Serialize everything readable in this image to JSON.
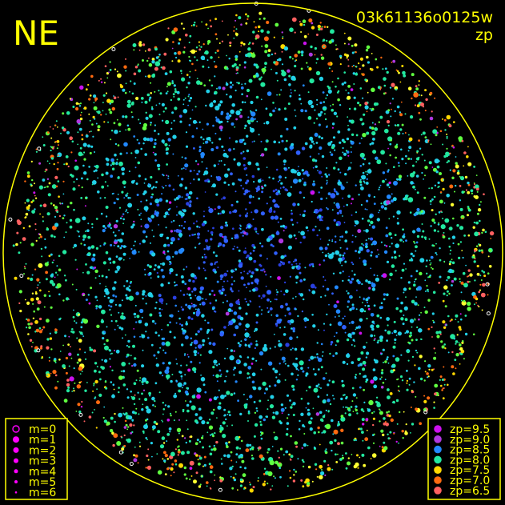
{
  "header": {
    "direction_label": "NE",
    "frame_id": "03k61136o0125w",
    "color_key": "zp"
  },
  "colors": {
    "frame": "#ffff00",
    "background": "#000000",
    "magnitude_marker": "#ff00ff"
  },
  "chart_data": {
    "type": "scatter",
    "title": "",
    "description_of_marks": "star detections inside circular all-sky field; marker size encodes magnitude m, marker color encodes zero point zp",
    "size_legend": [
      {
        "label": "m=0",
        "m": 0,
        "style": "ring"
      },
      {
        "label": "m=1",
        "m": 1
      },
      {
        "label": "m=2",
        "m": 2
      },
      {
        "label": "m=3",
        "m": 3
      },
      {
        "label": "m=4",
        "m": 4
      },
      {
        "label": "m=5",
        "m": 5
      },
      {
        "label": "m=6",
        "m": 6
      }
    ],
    "color_legend": [
      {
        "label": "zp=9.5",
        "zp": 9.5,
        "color": "#cc11ee"
      },
      {
        "label": "zp=9.0",
        "zp": 9.0,
        "color": "#b038e0"
      },
      {
        "label": "zp=8.5",
        "zp": 8.5,
        "color": "#2288ff"
      },
      {
        "label": "zp=8.0",
        "zp": 8.0,
        "color": "#22e8a0"
      },
      {
        "label": "zp=7.5",
        "zp": 7.5,
        "color": "#ffd800"
      },
      {
        "label": "zp=7.0",
        "zp": 7.0,
        "color": "#ff6a10"
      },
      {
        "label": "zp=6.5",
        "zp": 6.5,
        "color": "#ff6060"
      }
    ],
    "legend_placement": [
      "bottom-left",
      "bottom-right"
    ],
    "grid": false
  }
}
